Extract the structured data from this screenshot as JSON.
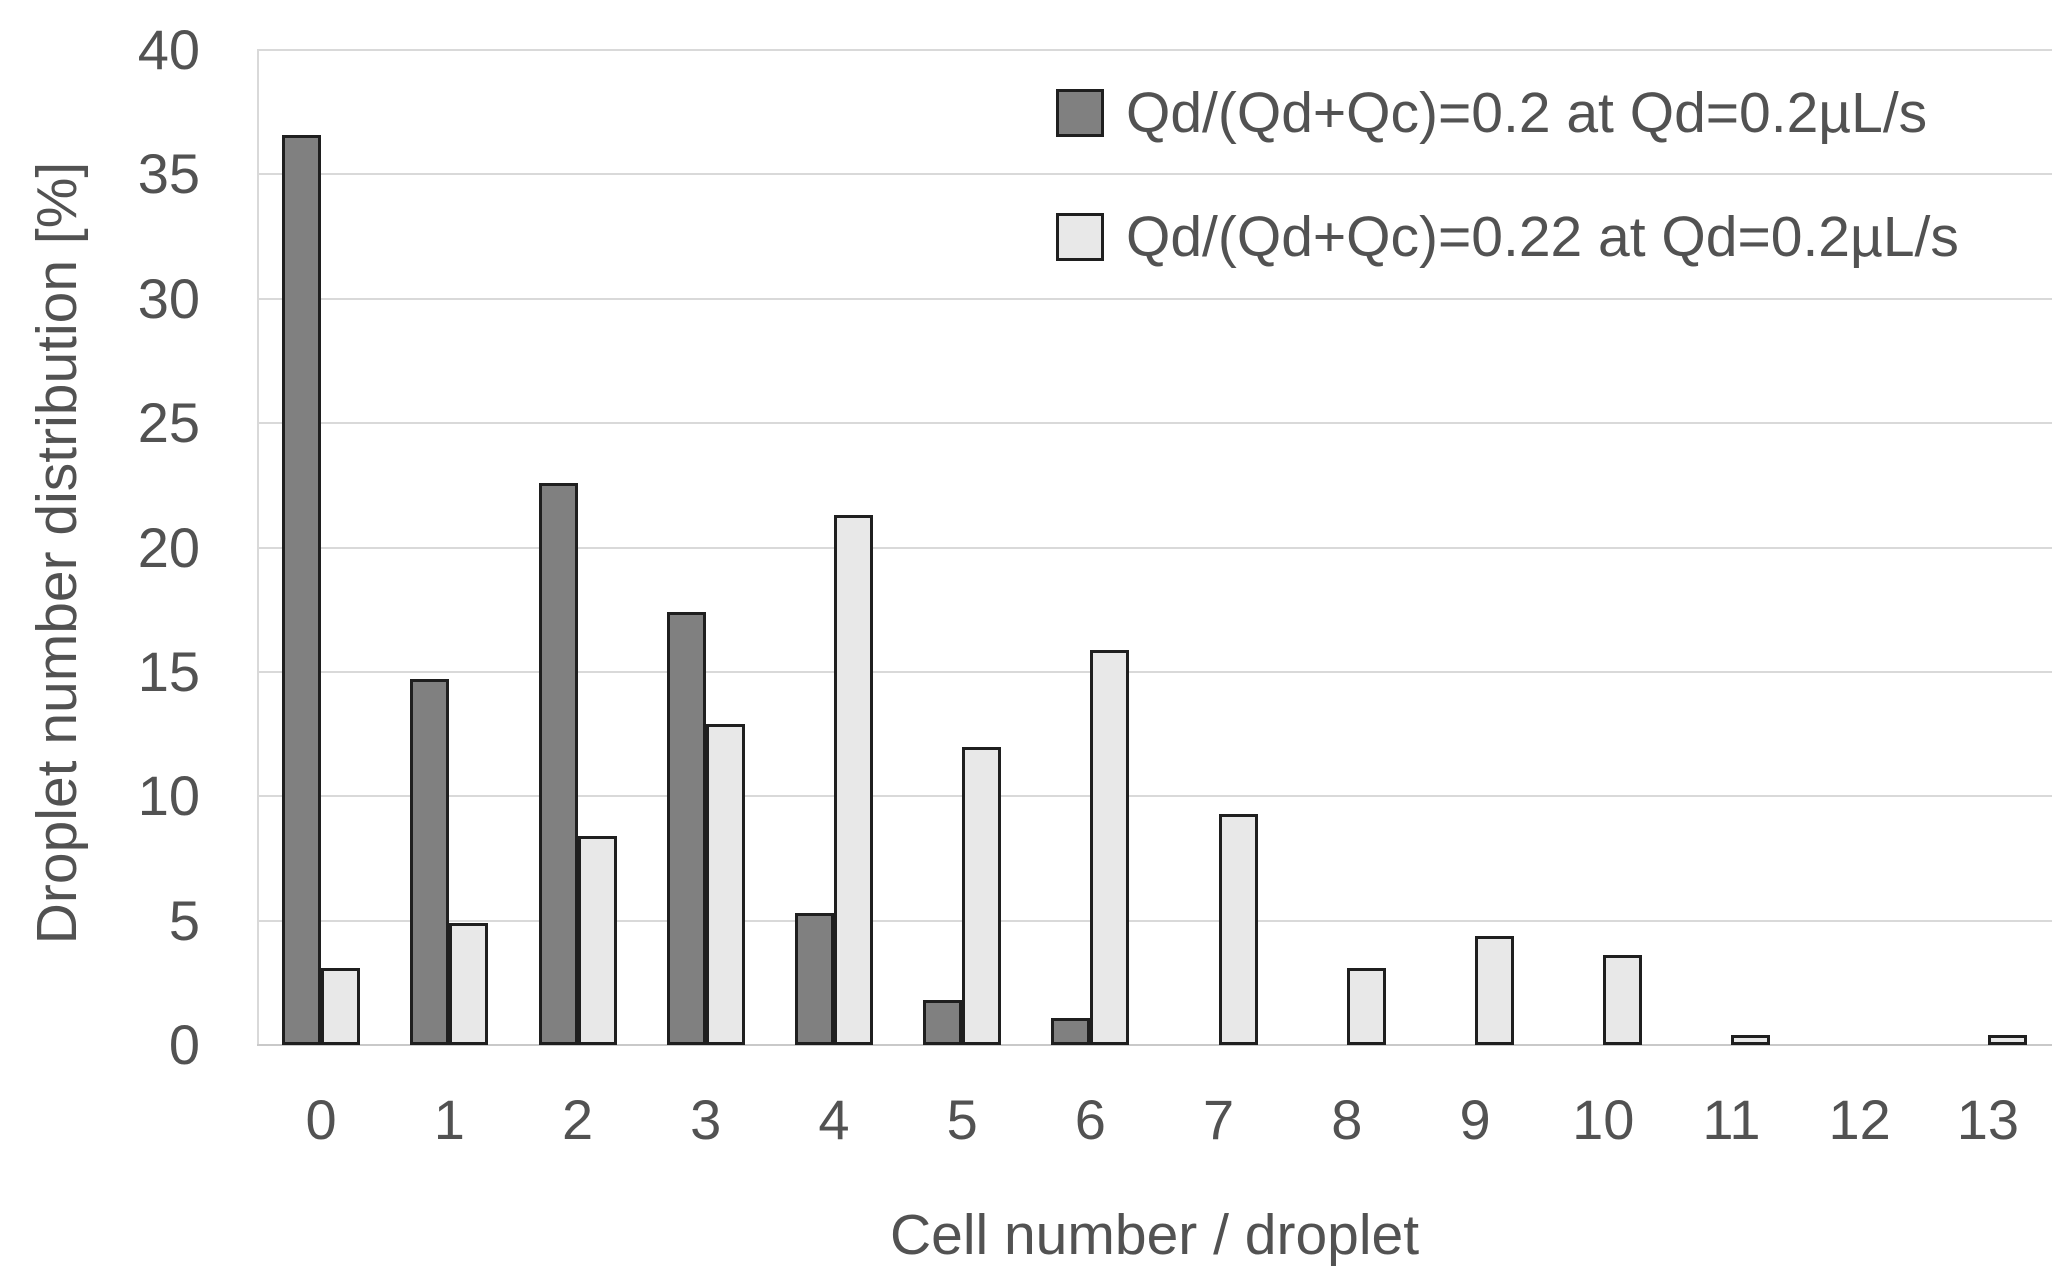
{
  "chart_data": {
    "type": "bar",
    "title": "",
    "xlabel": "Cell number / droplet",
    "ylabel": "Droplet number distribution [%]",
    "categories": [
      "0",
      "1",
      "2",
      "3",
      "4",
      "5",
      "6",
      "7",
      "8",
      "9",
      "10",
      "11",
      "12",
      "13"
    ],
    "series": [
      {
        "name": "Qd/(Qd+Qc)=0.2 at Qd=0.2µL/s",
        "fill": "#808080",
        "values": [
          36.6,
          14.7,
          22.6,
          17.4,
          5.3,
          1.8,
          1.1,
          0,
          0,
          0,
          0,
          0,
          0,
          0
        ]
      },
      {
        "name": "Qd/(Qd+Qc)=0.22 at Qd=0.2µL/s",
        "fill": "#e8e8e8",
        "values": [
          3.1,
          4.9,
          8.4,
          12.9,
          21.3,
          12.0,
          15.9,
          9.3,
          3.1,
          4.4,
          3.6,
          0.4,
          0,
          0.4
        ]
      }
    ],
    "ylim": [
      0,
      40
    ],
    "ytick_step": 5,
    "grid": true,
    "legend_position": "top-right-inside",
    "bar_outline": "#1f1f1f"
  },
  "colors": {
    "background": "#ffffff",
    "gridline": "#d9d9d9",
    "axis_line": "#c9c9c9",
    "text": "#525252"
  }
}
